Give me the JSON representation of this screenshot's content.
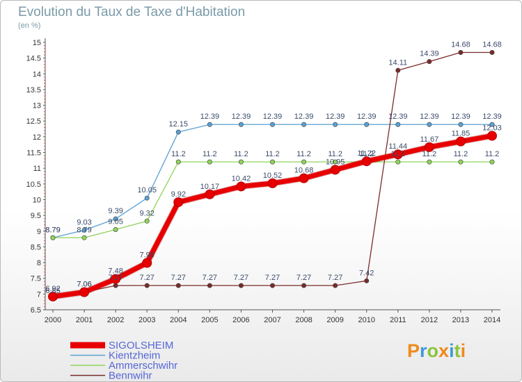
{
  "title": "Evolution du Taux de Taxe d'Habitation",
  "subtitle": "(en %)",
  "logo": {
    "text": "Proxiti",
    "colors": [
      "#f08a1c",
      "#3f98d6",
      "#8cc43c",
      "#f08a1c",
      "#3f98d6",
      "#8cc43c",
      "#f08a1c"
    ]
  },
  "chart_data": {
    "type": "line",
    "title": "Evolution du Taux de Taxe d'Habitation",
    "ylabel": "(en %)",
    "xlabel": "",
    "x": [
      "2000",
      "2001",
      "2002",
      "2003",
      "2004",
      "2005",
      "2006",
      "2007",
      "2008",
      "2009",
      "2010",
      "2011",
      "2012",
      "2013",
      "2014"
    ],
    "ylim": [
      6.5,
      15
    ],
    "yticks": [
      "6.5",
      "7",
      "7.5",
      "8",
      "8.5",
      "9",
      "9.5",
      "10",
      "10.5",
      "11",
      "11.5",
      "12",
      "12.5",
      "13",
      "13.5",
      "14",
      "14.5",
      "15"
    ],
    "grid": false,
    "legend_position": "bottom-left",
    "series": [
      {
        "name": "SIGOLSHEIM",
        "color": "#e80000",
        "values": [
          6.92,
          7.06,
          7.48,
          7.99,
          9.92,
          10.17,
          10.42,
          10.52,
          10.68,
          10.95,
          11.22,
          11.44,
          11.67,
          11.85,
          12.03
        ],
        "labels": [
          "6.92",
          "7.06",
          "7.48",
          "7.99",
          "9.92",
          "10.17",
          "10.42",
          "10.52",
          "10.68",
          "10.95",
          "11.22",
          "11.44",
          "11.67",
          "11.85",
          "12.03"
        ]
      },
      {
        "name": "Kientzheim",
        "color": "#5aa0d2",
        "values": [
          8.79,
          9.03,
          9.39,
          10.05,
          12.15,
          12.39,
          12.39,
          12.39,
          12.39,
          12.39,
          12.39,
          12.39,
          12.39,
          12.39,
          12.39
        ],
        "labels": [
          "8.79",
          "9.03",
          "9.39",
          "10.05",
          "12.15",
          "12.39",
          "12.39",
          "12.39",
          "12.39",
          "12.39",
          "12.39",
          "12.39",
          "12.39",
          "12.39",
          "12.39"
        ]
      },
      {
        "name": "Ammerschwihr",
        "color": "#8ed35a",
        "values": [
          8.79,
          8.79,
          9.05,
          9.32,
          11.2,
          11.2,
          11.2,
          11.2,
          11.2,
          11.2,
          11.2,
          11.2,
          11.2,
          11.2,
          11.2
        ],
        "labels": [
          "8.79",
          "8.79",
          "9.05",
          "9.32",
          "11.2",
          "11.2",
          "11.2",
          "11.2",
          "11.2",
          "11.2",
          "11.2",
          "11.2",
          "11.2",
          "11.2",
          "11.2"
        ]
      },
      {
        "name": "Bennwihr",
        "color": "#7a2a2a",
        "values": [
          6.85,
          7.06,
          7.27,
          7.27,
          7.27,
          7.27,
          7.27,
          7.27,
          7.27,
          7.27,
          7.42,
          14.11,
          14.39,
          14.68,
          14.68
        ],
        "labels": [
          "6.85",
          "7.06",
          "7.27",
          "7.27",
          "7.27",
          "7.27",
          "7.27",
          "7.27",
          "7.27",
          "7.27",
          "7.42",
          "14.11",
          "14.39",
          "14.68",
          "14.68"
        ]
      }
    ]
  }
}
